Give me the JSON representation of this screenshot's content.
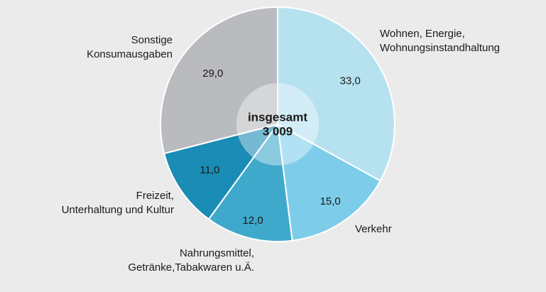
{
  "chart_data": {
    "type": "pie",
    "categories": [
      [
        "Wohnen, Energie,",
        "Wohnungsinstandhaltung"
      ],
      [
        "Verkehr"
      ],
      [
        "Nahrungsmittel,",
        "Getränke,Tabakwaren u.Ä."
      ],
      [
        "Freizeit,",
        "Unterhaltung und Kultur"
      ],
      [
        "Sonstige",
        "Konsumausgaben"
      ]
    ],
    "values": [
      33,
      15,
      12,
      11,
      29
    ],
    "value_labels": [
      "33,0",
      "15,0",
      "12,0",
      "11,0",
      "29,0"
    ],
    "colors": [
      "#b6e2f0",
      "#7dcdea",
      "#3fa9cc",
      "#1a8cb5",
      "#b9bbbe"
    ],
    "center_text": [
      "insgesamt",
      "3 009"
    ]
  }
}
